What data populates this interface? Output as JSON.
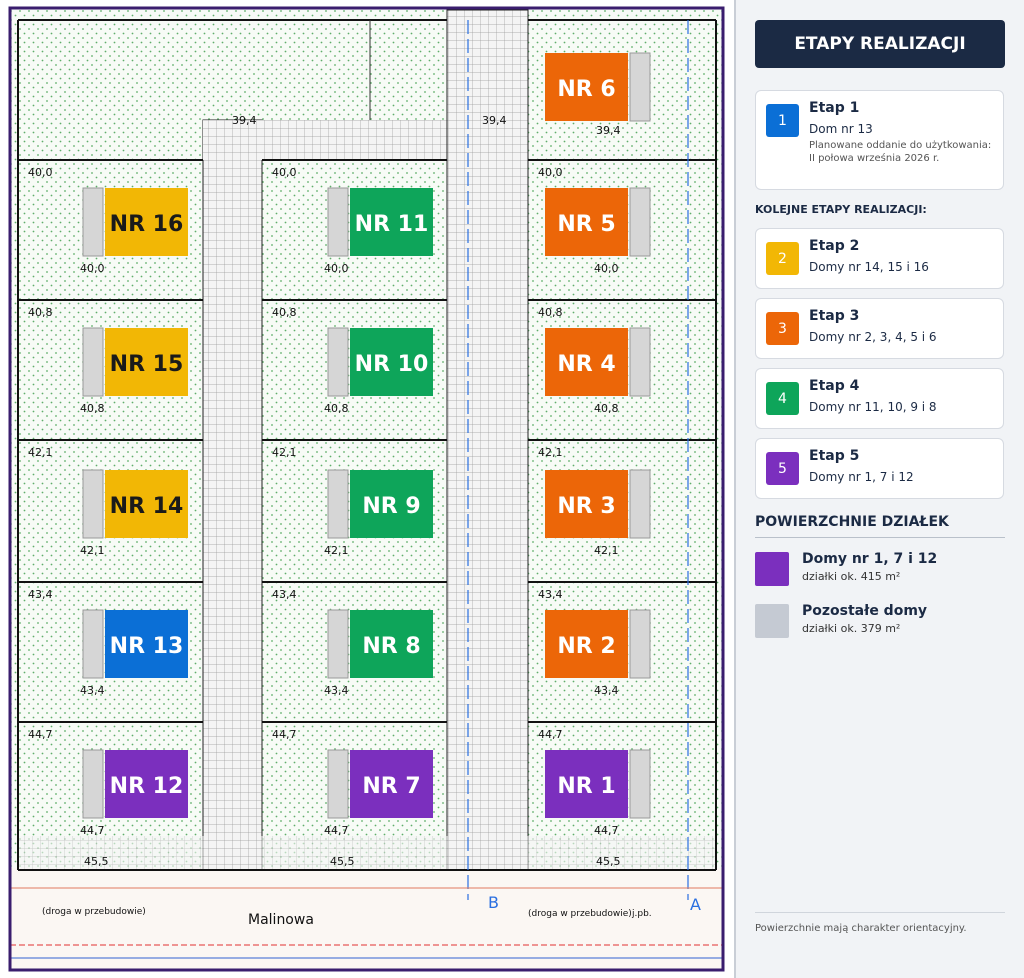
{
  "map": {
    "houses": [
      {
        "label": "NR 6",
        "color": "#ec6608",
        "label_color": "#ffffff"
      },
      {
        "label": "NR 16",
        "color": "#f2b705",
        "label_color": "#1a1a1a"
      },
      {
        "label": "NR 11",
        "color": "#0ea55a",
        "label_color": "#ffffff"
      },
      {
        "label": "NR 5",
        "color": "#ec6608",
        "label_color": "#ffffff"
      },
      {
        "label": "NR 15",
        "color": "#f2b705",
        "label_color": "#1a1a1a"
      },
      {
        "label": "NR 10",
        "color": "#0ea55a",
        "label_color": "#ffffff"
      },
      {
        "label": "NR 4",
        "color": "#ec6608",
        "label_color": "#ffffff"
      },
      {
        "label": "NR 14",
        "color": "#f2b705",
        "label_color": "#1a1a1a"
      },
      {
        "label": "NR 9",
        "color": "#0ea55a",
        "label_color": "#ffffff"
      },
      {
        "label": "NR 3",
        "color": "#ec6608",
        "label_color": "#ffffff"
      },
      {
        "label": "NR 13",
        "color": "#0b6fd6",
        "label_color": "#ffffff"
      },
      {
        "label": "NR 8",
        "color": "#0ea55a",
        "label_color": "#ffffff"
      },
      {
        "label": "NR 2",
        "color": "#ec6608",
        "label_color": "#ffffff"
      },
      {
        "label": "NR 12",
        "color": "#7b2fbe",
        "label_color": "#ffffff"
      },
      {
        "label": "NR 7",
        "color": "#7b2fbe",
        "label_color": "#ffffff"
      },
      {
        "label": "NR 1",
        "color": "#7b2fbe",
        "label_color": "#ffffff"
      }
    ],
    "levels": [
      "40,0",
      "40,8",
      "42,1",
      "43,4",
      "44,7"
    ],
    "top_level": "39,4",
    "bottom_level": "45,5",
    "street_name": "Malinowa",
    "road_note": "(droga w przebudowie)",
    "road_abbr": "j.pb.",
    "axis_labels": [
      "A",
      "B"
    ]
  },
  "sidebar": {
    "title": "ETAPY REALIZACJI",
    "current_stage": {
      "badge": "1",
      "name": "Etap 1",
      "houses": "Dom nr 13",
      "note": "Planowane oddanie do użytkowania:",
      "date": "II połowa września 2026 r.",
      "color": "#0b6fd6"
    },
    "next_heading": "KOLEJNE ETAPY REALIZACJI:",
    "stages": [
      {
        "badge": "2",
        "name": "Etap 2",
        "houses": "Domy nr 14, 15 i 16",
        "color": "#f2b705"
      },
      {
        "badge": "3",
        "name": "Etap 3",
        "houses": "Domy nr 2, 3, 4, 5 i 6",
        "color": "#ec6608"
      },
      {
        "badge": "4",
        "name": "Etap 4",
        "houses": "Domy nr 11, 10, 9 i 8",
        "color": "#0ea55a"
      },
      {
        "badge": "5",
        "name": "Etap 5",
        "houses": "Domy nr 1, 7 i 12",
        "color": "#7b2fbe"
      }
    ],
    "areas_heading": "POWIERZCHNIE DZIAŁEK",
    "areas": [
      {
        "name": "Domy nr 1, 7 i 12",
        "detail": "działki ok. 415 m²",
        "color": "#7b2fbe"
      },
      {
        "name": "Pozostałe domy",
        "detail": "działki ok. 379 m²",
        "color": "#c5cad3"
      }
    ],
    "footnote": "Powierzchnie mają charakter orientacyjny."
  }
}
